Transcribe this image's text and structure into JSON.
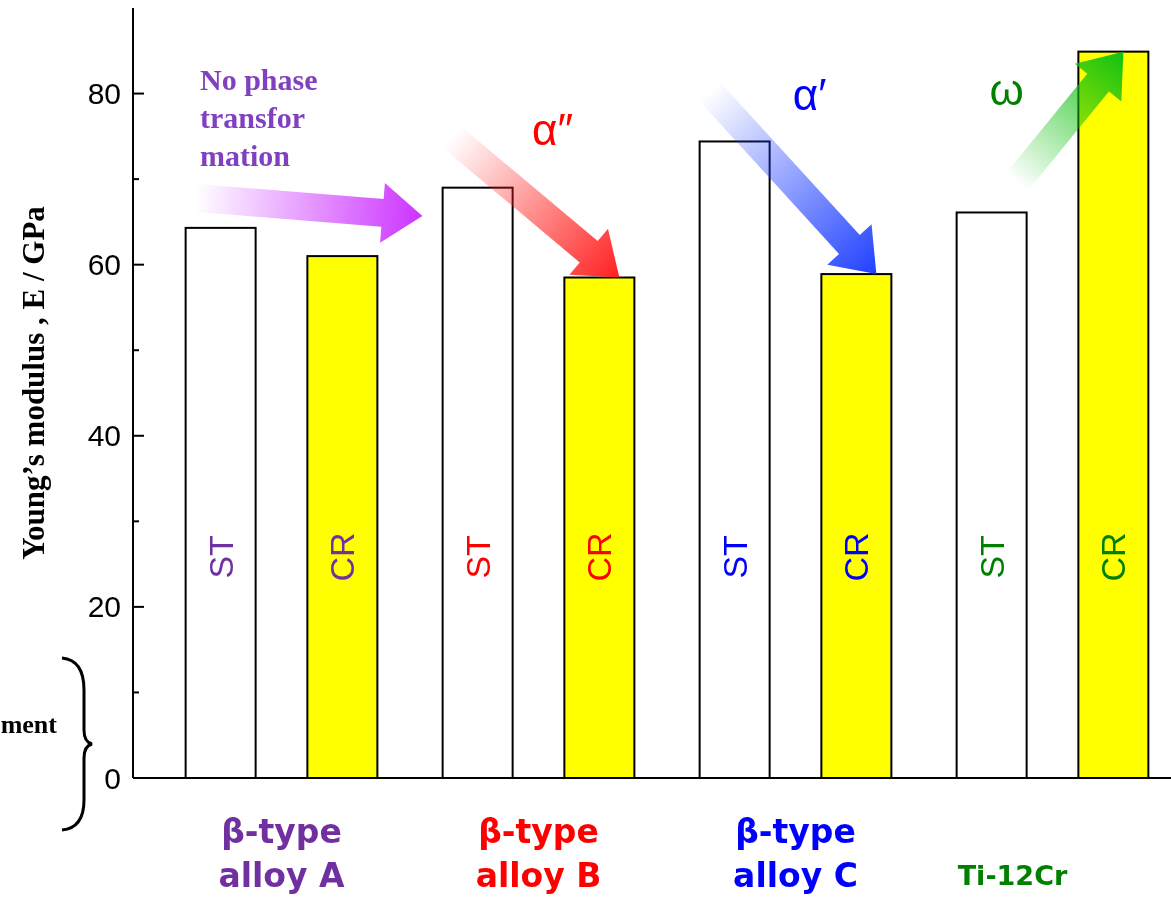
{
  "chart_data": {
    "type": "bar",
    "ylabel": "Young’s modulus , E / GPa",
    "categories": [
      "β-type\nalloy A",
      "β-type\nalloy B",
      "β-type\nalloy C",
      "Ti-12Cr"
    ],
    "series": [
      {
        "name": "ST",
        "color": "#ffffff",
        "values": [
          64.3,
          69.0,
          74.4,
          66.1
        ]
      },
      {
        "name": "CR",
        "color": "#ffff00",
        "values": [
          61.0,
          58.5,
          58.9,
          84.9
        ]
      }
    ],
    "ylim": [
      0,
      90
    ],
    "yticks": [
      0,
      {
        "value": 10,
        "label": null
      },
      20,
      {
        "value": 30,
        "label": null
      },
      40,
      {
        "value": 50,
        "label": null
      },
      60,
      {
        "value": 70,
        "label": null
      },
      80
    ],
    "annotations": [
      "No phase\ntransfor\nmation",
      "α″",
      "α′",
      "ω",
      "ment"
    ],
    "legend": false
  }
}
